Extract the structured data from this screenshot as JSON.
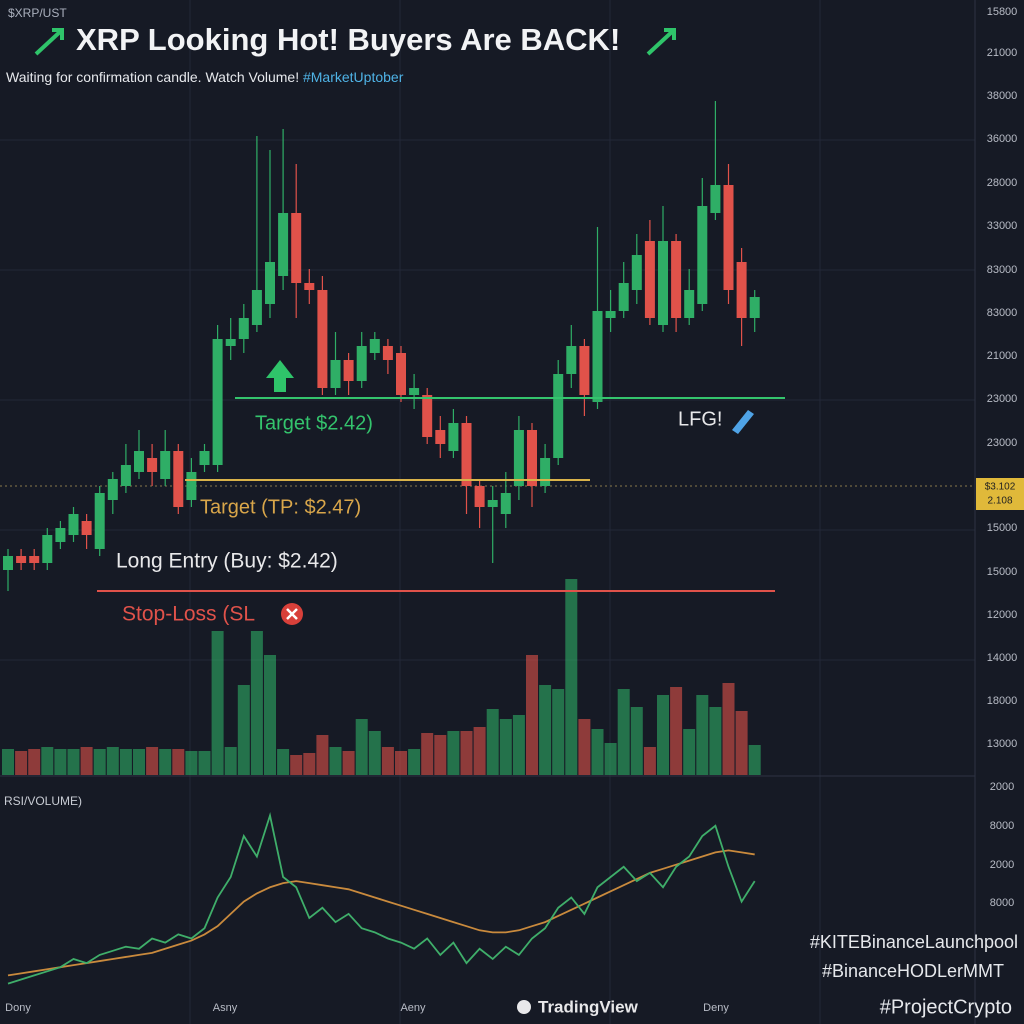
{
  "header": {
    "symbol": "$XRP/UST",
    "title": "XRP Looking Hot! Buyers Are BACK!",
    "subtitle": "Waiting for confirmation candle. Watch Volume!",
    "hashtag": "#MarketUptober"
  },
  "chart_data": {
    "type": "candlestick",
    "ylim": [
      0,
      100
    ],
    "vlim": [
      0,
      100
    ],
    "rlim": [
      0,
      100
    ],
    "up_color": "#2fae66",
    "down_color": "#e0524a",
    "open": [
      30,
      32,
      32,
      31,
      34,
      35,
      37,
      33,
      40,
      42,
      44,
      46,
      43,
      47,
      40,
      45,
      45,
      62,
      63,
      65,
      68,
      72,
      81,
      71,
      70,
      56,
      60,
      57,
      61,
      62,
      61,
      55,
      55,
      50,
      47,
      51,
      42,
      39,
      38,
      42,
      50,
      42,
      46,
      58,
      62,
      54,
      66,
      67,
      70,
      77,
      65,
      77,
      66,
      68,
      81,
      85,
      74,
      66
    ],
    "close": [
      32,
      31,
      31,
      35,
      36,
      38,
      35,
      41,
      43,
      45,
      47,
      44,
      47,
      39,
      44,
      47,
      63,
      63,
      66,
      70,
      74,
      81,
      71,
      70,
      56,
      60,
      57,
      62,
      63,
      60,
      55,
      56,
      49,
      48,
      51,
      42,
      39,
      40,
      41,
      50,
      42,
      46,
      58,
      62,
      55,
      67,
      67,
      71,
      75,
      66,
      77,
      66,
      70,
      82,
      85,
      70,
      66,
      69
    ],
    "high": [
      33,
      33,
      33,
      36,
      37,
      39,
      38,
      42,
      44,
      48,
      50,
      48,
      50,
      48,
      46,
      48,
      65,
      66,
      68,
      92,
      90,
      93,
      88,
      73,
      72,
      64,
      61,
      64,
      64,
      63,
      62,
      58,
      56,
      52,
      53,
      52,
      43,
      42,
      44,
      52,
      51,
      48,
      60,
      65,
      63,
      79,
      70,
      74,
      78,
      80,
      82,
      78,
      73,
      86,
      97,
      88,
      76,
      70
    ],
    "low": [
      27,
      30,
      30,
      30,
      33,
      34,
      33,
      32,
      38,
      41,
      43,
      42,
      42,
      38,
      39,
      44,
      44,
      60,
      61,
      64,
      66,
      70,
      66,
      68,
      55,
      55,
      55,
      56,
      60,
      58,
      54,
      53,
      48,
      46,
      46,
      38,
      36,
      31,
      36,
      40,
      39,
      41,
      45,
      56,
      52,
      53,
      64,
      66,
      68,
      65,
      64,
      64,
      65,
      67,
      80,
      68,
      62,
      64
    ],
    "volume": [
      13,
      12,
      13,
      14,
      13,
      13,
      14,
      13,
      14,
      13,
      13,
      14,
      13,
      13,
      12,
      12,
      72,
      14,
      45,
      72,
      60,
      13,
      10,
      11,
      20,
      14,
      12,
      28,
      22,
      14,
      12,
      13,
      21,
      20,
      22,
      22,
      24,
      33,
      28,
      30,
      60,
      45,
      43,
      98,
      28,
      23,
      16,
      43,
      34,
      14,
      40,
      44,
      23,
      40,
      34,
      46,
      32,
      15
    ],
    "rsi_fast": [
      8,
      10,
      12,
      14,
      16,
      20,
      18,
      22,
      24,
      26,
      25,
      30,
      28,
      32,
      30,
      35,
      50,
      60,
      80,
      70,
      90,
      60,
      55,
      40,
      45,
      38,
      42,
      35,
      33,
      30,
      28,
      25,
      30,
      22,
      28,
      18,
      25,
      20,
      26,
      22,
      30,
      35,
      45,
      50,
      42,
      55,
      60,
      65,
      58,
      62,
      55,
      65,
      70,
      80,
      85,
      65,
      48,
      58
    ],
    "rsi_slow": [
      12,
      13,
      14,
      15,
      16,
      17,
      18,
      19,
      20,
      21,
      22,
      23,
      25,
      27,
      29,
      32,
      36,
      42,
      48,
      52,
      55,
      57,
      58,
      57,
      56,
      55,
      54,
      52,
      50,
      48,
      46,
      44,
      42,
      40,
      38,
      36,
      34,
      33,
      33,
      34,
      36,
      38,
      41,
      44,
      47,
      50,
      53,
      56,
      59,
      62,
      64,
      66,
      68,
      70,
      72,
      73,
      72,
      71
    ],
    "rsi_fast_color": "#3fae6a",
    "rsi_slow_color": "#c98a3d"
  },
  "price_axis_labels": [
    "15800",
    "21000",
    "38000",
    "36000",
    "28000",
    "33000",
    "83000",
    "83000",
    "21000",
    "23000",
    "23000",
    "15000",
    "15000",
    "12000",
    "14000",
    "18000",
    "13000",
    "2000",
    "8000",
    "2000",
    "8000"
  ],
  "price_box": [
    "$3.102",
    "2.108"
  ],
  "x_axis_labels": [
    "Dony",
    "Asny",
    "Aeny",
    "Deny"
  ],
  "annotations": {
    "target1": "Target $2.42)",
    "target2": "Target (TP: $2.47)",
    "entry": "Long Entry (Buy: $2.42)",
    "stop": "Stop-Loss (SL",
    "lfg": "LFG!"
  },
  "panel_label": "RSI/VOLUME)",
  "footer": {
    "tags": [
      "#KITEBinanceLaunchpool",
      "#BinanceHODLerMMT",
      "#ProjectCrypto"
    ],
    "brand": "TradingView"
  }
}
